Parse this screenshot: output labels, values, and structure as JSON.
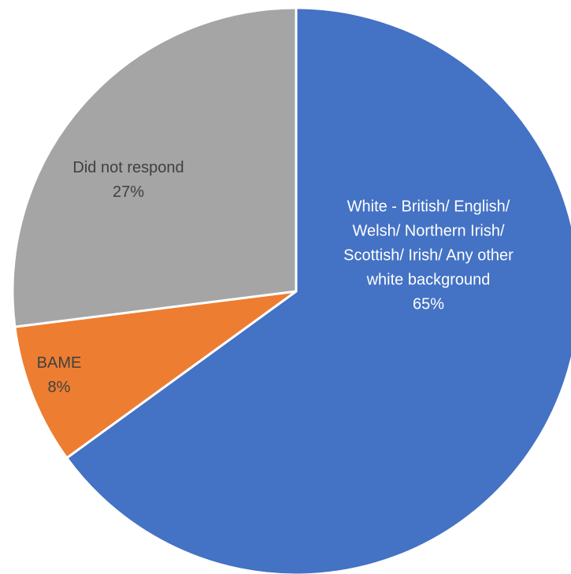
{
  "chart_data": {
    "type": "pie",
    "title": "",
    "slices": [
      {
        "label_lines": [
          "White - British/ English/",
          "Welsh/ Northern Irish/",
          "Scottish/ Irish/ Any other",
          "white background"
        ],
        "value": 65,
        "value_label": "65%",
        "color": "#4472C4",
        "label_color": "#ffffff"
      },
      {
        "label_lines": [
          "BAME"
        ],
        "value": 8,
        "value_label": "8%",
        "color": "#ED7D31",
        "label_color": "#404040"
      },
      {
        "label_lines": [
          "Did not respond"
        ],
        "value": 27,
        "value_label": "27%",
        "color": "#A5A5A5",
        "label_color": "#404040"
      }
    ],
    "start_angle": "12 o'clock",
    "direction": "clockwise",
    "legend": "none"
  }
}
